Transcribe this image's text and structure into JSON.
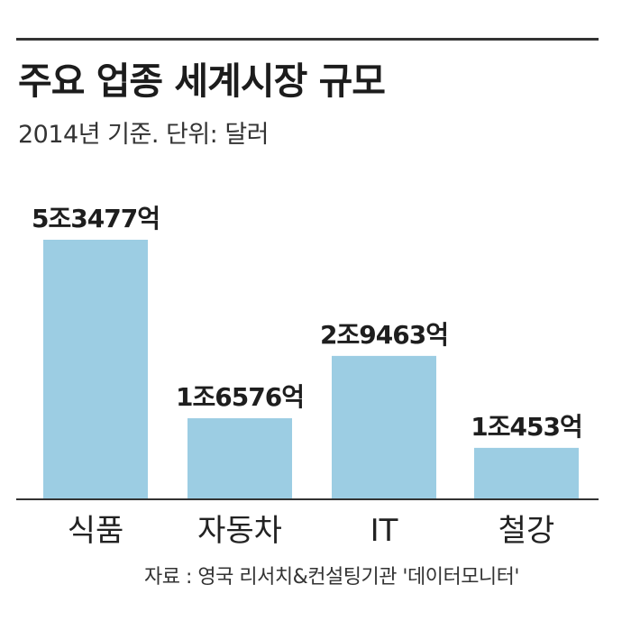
{
  "chart_data": {
    "type": "bar",
    "title": "주요 업종 세계시장 규모",
    "subtitle": "2014년 기준. 단위: 달러",
    "categories": [
      "식품",
      "자동차",
      "IT",
      "철강"
    ],
    "values": [
      53477,
      16576,
      29463,
      10453
    ],
    "value_labels": [
      "5조3477억",
      "1조6576억",
      "2조9463억",
      "1조453억"
    ],
    "ylim": [
      0,
      53477
    ],
    "grid": false,
    "legend": "none",
    "bar_color": "#9ccde3",
    "baseline_color": "#333333"
  },
  "source": "자료 : 영국 리서치&컨설팅기관 '데이터모니터'"
}
